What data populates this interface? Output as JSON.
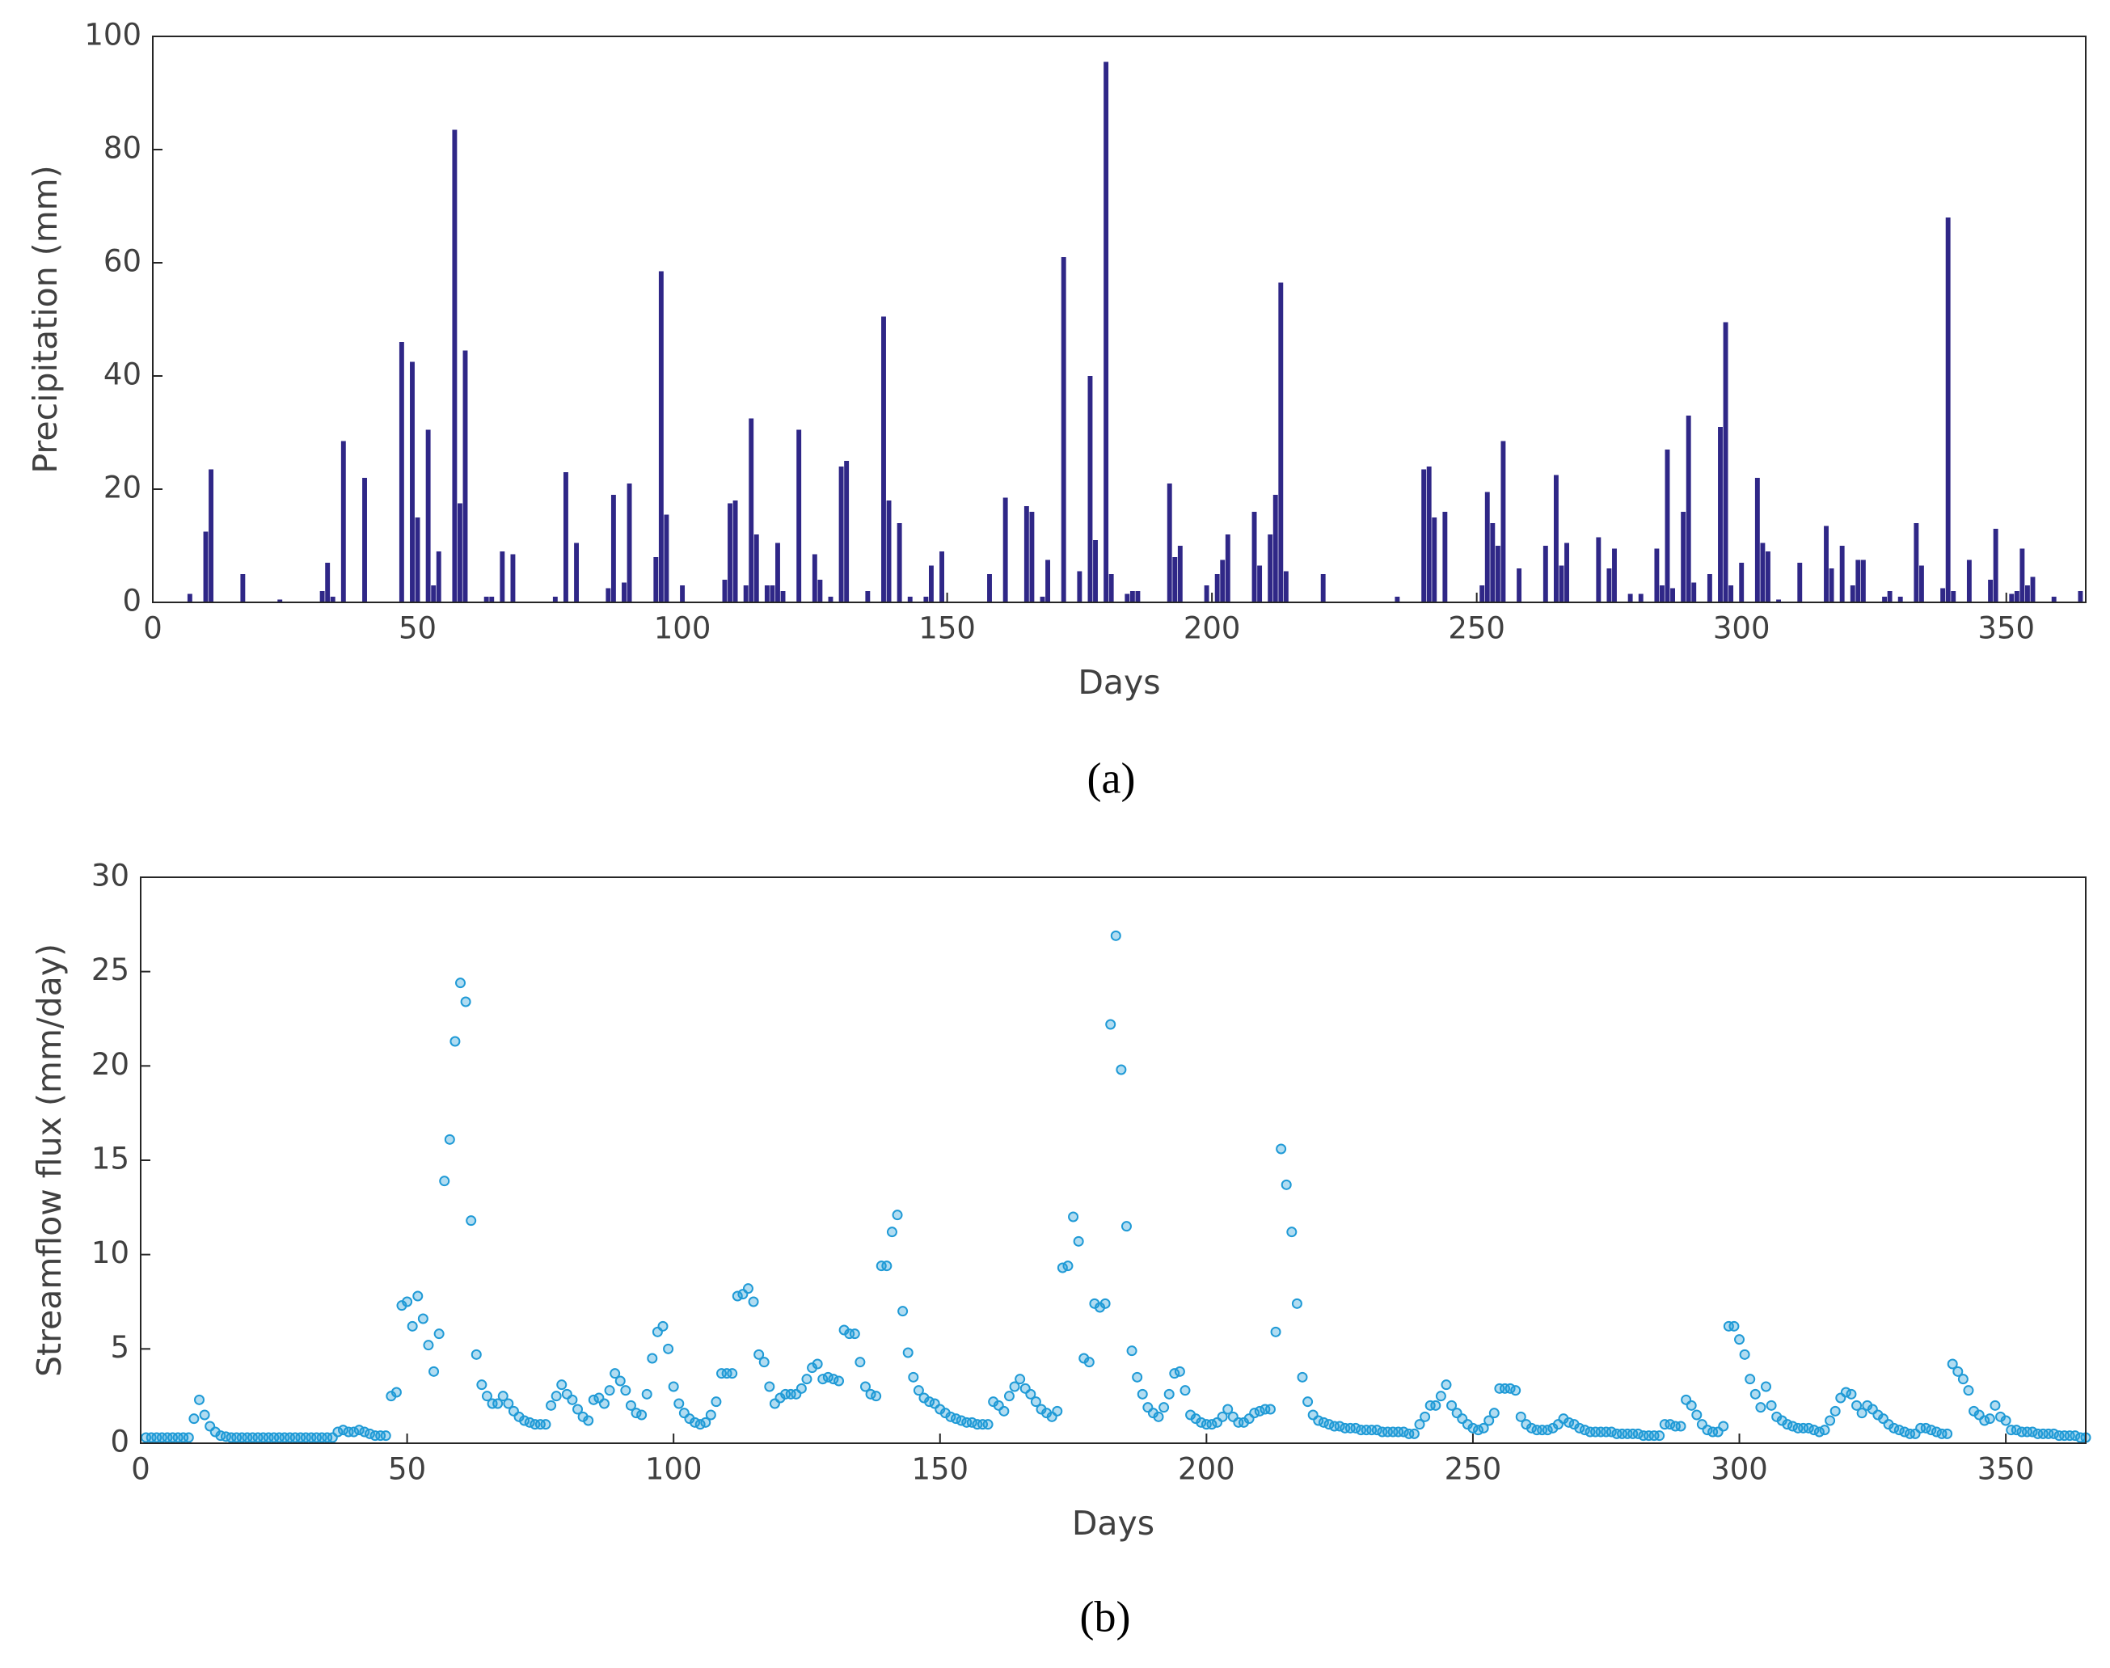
{
  "chart_data": [
    {
      "type": "bar",
      "panel_label": "(a)",
      "xlabel": "Days",
      "ylabel": "Precipitation (mm)",
      "color": "#2f2787",
      "xlim": [
        0,
        365
      ],
      "xticks": [
        0,
        50,
        100,
        150,
        200,
        250,
        300,
        350
      ],
      "ylim": [
        0,
        100
      ],
      "yticks": [
        0,
        20,
        40,
        60,
        80,
        100
      ],
      "x": [
        7,
        10,
        11,
        17,
        24,
        32,
        33,
        34,
        36,
        40,
        47,
        49,
        50,
        52,
        53,
        54,
        57,
        58,
        59,
        63,
        64,
        66,
        68,
        76,
        78,
        80,
        86,
        87,
        89,
        90,
        95,
        96,
        97,
        100,
        108,
        109,
        110,
        112,
        113,
        114,
        116,
        117,
        118,
        119,
        122,
        125,
        126,
        128,
        130,
        131,
        135,
        138,
        139,
        141,
        143,
        146,
        147,
        149,
        158,
        161,
        165,
        166,
        168,
        169,
        172,
        175,
        177,
        178,
        180,
        181,
        184,
        185,
        186,
        192,
        193,
        194,
        199,
        201,
        202,
        203,
        208,
        209,
        211,
        212,
        213,
        214,
        221,
        235,
        240,
        241,
        242,
        244,
        251,
        252,
        253,
        254,
        255,
        258,
        263,
        265,
        266,
        267,
        273,
        275,
        276,
        279,
        281,
        284,
        285,
        286,
        287,
        289,
        290,
        291,
        294,
        296,
        297,
        298,
        300,
        303,
        304,
        305,
        307,
        311,
        316,
        317,
        319,
        321,
        322,
        323,
        327,
        328,
        330,
        333,
        334,
        338,
        339,
        340,
        343,
        347,
        348,
        351,
        352,
        353,
        354,
        355,
        359,
        364
      ],
      "values": [
        1.5,
        12.5,
        23.5,
        5,
        0.5,
        2,
        7,
        1,
        28.5,
        22,
        46,
        42.5,
        15,
        30.5,
        3,
        9,
        83.5,
        17.5,
        44.5,
        1,
        1,
        9,
        8.5,
        1,
        23,
        10.5,
        2.5,
        19,
        3.5,
        21,
        8,
        58.5,
        15.5,
        3,
        4,
        17.5,
        18,
        3,
        32.5,
        12,
        3,
        3,
        10.5,
        2,
        30.5,
        8.5,
        4,
        1,
        24,
        25,
        2,
        50.5,
        18,
        14,
        1,
        1,
        6.5,
        9,
        5,
        18.5,
        17,
        16,
        1,
        7.5,
        61,
        5.5,
        40,
        11,
        95.5,
        5,
        1.5,
        2,
        2,
        21,
        8,
        10,
        3,
        5,
        7.5,
        12,
        16,
        6.5,
        12,
        19,
        56.5,
        5.5,
        5,
        1,
        23.5,
        24,
        15,
        16,
        3,
        19.5,
        14,
        10,
        28.5,
        6,
        10,
        22.5,
        6.5,
        10.5,
        11.5,
        6,
        9.5,
        1.5,
        1.5,
        9.5,
        3,
        27,
        2.5,
        16,
        33,
        3.5,
        5,
        31,
        49.5,
        3,
        7,
        22,
        10.5,
        9,
        0.5,
        7,
        13.5,
        6,
        10,
        3,
        7.5,
        7.5,
        1,
        2,
        1,
        14,
        6.5,
        2.5,
        68,
        2,
        7.5,
        4,
        13,
        1.5,
        2,
        9.5,
        3,
        4.5,
        1,
        2
      ]
    },
    {
      "type": "scatter",
      "panel_label": "(b)",
      "xlabel": "Days",
      "ylabel": "Streamflow flux (mm/day)",
      "color": "#1f9ad6",
      "xlim": [
        0,
        365
      ],
      "xticks": [
        0,
        50,
        100,
        150,
        200,
        250,
        300,
        350
      ],
      "ylim": [
        0,
        30
      ],
      "yticks": [
        0,
        5,
        10,
        15,
        20,
        25,
        30
      ],
      "x": [
        1,
        2,
        3,
        4,
        5,
        6,
        7,
        8,
        9,
        10,
        11,
        12,
        13,
        14,
        15,
        16,
        17,
        18,
        19,
        20,
        21,
        22,
        23,
        24,
        25,
        26,
        27,
        28,
        29,
        30,
        31,
        32,
        33,
        34,
        35,
        36,
        37,
        38,
        39,
        40,
        41,
        42,
        43,
        44,
        45,
        46,
        47,
        48,
        49,
        50,
        51,
        52,
        53,
        54,
        55,
        56,
        57,
        58,
        59,
        60,
        61,
        62,
        63,
        64,
        65,
        66,
        67,
        68,
        69,
        70,
        71,
        72,
        73,
        74,
        75,
        76,
        77,
        78,
        79,
        80,
        81,
        82,
        83,
        84,
        85,
        86,
        87,
        88,
        89,
        90,
        91,
        92,
        93,
        94,
        95,
        96,
        97,
        98,
        99,
        100,
        101,
        102,
        103,
        104,
        105,
        106,
        107,
        108,
        109,
        110,
        111,
        112,
        113,
        114,
        115,
        116,
        117,
        118,
        119,
        120,
        121,
        122,
        123,
        124,
        125,
        126,
        127,
        128,
        129,
        130,
        131,
        132,
        133,
        134,
        135,
        136,
        137,
        138,
        139,
        140,
        141,
        142,
        143,
        144,
        145,
        146,
        147,
        148,
        149,
        150,
        151,
        152,
        153,
        154,
        155,
        156,
        157,
        158,
        159,
        160,
        161,
        162,
        163,
        164,
        165,
        166,
        167,
        168,
        169,
        170,
        171,
        172,
        173,
        174,
        175,
        176,
        177,
        178,
        179,
        180,
        181,
        182,
        183,
        184,
        185,
        186,
        187,
        188,
        189,
        190,
        191,
        192,
        193,
        194,
        195,
        196,
        197,
        198,
        199,
        200,
        201,
        202,
        203,
        204,
        205,
        206,
        207,
        208,
        209,
        210,
        211,
        212,
        213,
        214,
        215,
        216,
        217,
        218,
        219,
        220,
        221,
        222,
        223,
        224,
        225,
        226,
        227,
        228,
        229,
        230,
        231,
        232,
        233,
        234,
        235,
        236,
        237,
        238,
        239,
        240,
        241,
        242,
        243,
        244,
        245,
        246,
        247,
        248,
        249,
        250,
        251,
        252,
        253,
        254,
        255,
        256,
        257,
        258,
        259,
        260,
        261,
        262,
        263,
        264,
        265,
        266,
        267,
        268,
        269,
        270,
        271,
        272,
        273,
        274,
        275,
        276,
        277,
        278,
        279,
        280,
        281,
        282,
        283,
        284,
        285,
        286,
        287,
        288,
        289,
        290,
        291,
        292,
        293,
        294,
        295,
        296,
        297,
        298,
        299,
        300,
        301,
        302,
        303,
        304,
        305,
        306,
        307,
        308,
        309,
        310,
        311,
        312,
        313,
        314,
        315,
        316,
        317,
        318,
        319,
        320,
        321,
        322,
        323,
        324,
        325,
        326,
        327,
        328,
        329,
        330,
        331,
        332,
        333,
        334,
        335,
        336,
        337,
        338,
        339,
        340,
        341,
        342,
        343,
        344,
        345,
        346,
        347,
        348,
        349,
        350,
        351,
        352,
        353,
        354,
        355,
        356,
        357,
        358,
        359,
        360,
        361,
        362,
        363,
        364,
        365
      ],
      "values": [
        0.3,
        0.3,
        0.3,
        0.3,
        0.3,
        0.3,
        0.3,
        0.3,
        0.3,
        1.3,
        2.3,
        1.5,
        0.9,
        0.6,
        0.4,
        0.35,
        0.3,
        0.3,
        0.3,
        0.3,
        0.3,
        0.3,
        0.3,
        0.3,
        0.3,
        0.3,
        0.3,
        0.3,
        0.3,
        0.3,
        0.3,
        0.3,
        0.3,
        0.3,
        0.3,
        0.3,
        0.6,
        0.7,
        0.6,
        0.6,
        0.7,
        0.6,
        0.5,
        0.4,
        0.4,
        0.4,
        2.5,
        2.7,
        7.3,
        7.5,
        6.2,
        7.8,
        6.6,
        5.2,
        3.8,
        5.8,
        13.9,
        16.1,
        21.3,
        24.4,
        23.4,
        11.8,
        4.7,
        3.1,
        2.5,
        2.1,
        2.1,
        2.5,
        2.1,
        1.7,
        1.4,
        1.2,
        1.1,
        1.0,
        1.0,
        1.0,
        2.0,
        2.5,
        3.1,
        2.6,
        2.3,
        1.8,
        1.4,
        1.2,
        2.3,
        2.4,
        2.1,
        2.8,
        3.7,
        3.3,
        2.8,
        2.0,
        1.6,
        1.5,
        2.6,
        4.5,
        5.9,
        6.2,
        5.0,
        3.0,
        2.1,
        1.6,
        1.3,
        1.1,
        1.0,
        1.1,
        1.5,
        2.2,
        3.7,
        3.7,
        3.7,
        7.8,
        7.9,
        8.2,
        7.5,
        4.7,
        4.3,
        3.0,
        2.1,
        2.4,
        2.6,
        2.6,
        2.6,
        2.9,
        3.4,
        4.0,
        4.2,
        3.4,
        3.5,
        3.4,
        3.3,
        6.0,
        5.8,
        5.8,
        4.3,
        3.0,
        2.6,
        2.5,
        9.4,
        9.4,
        11.2,
        12.1,
        7.0,
        4.8,
        3.5,
        2.8,
        2.4,
        2.2,
        2.1,
        1.8,
        1.6,
        1.4,
        1.3,
        1.2,
        1.1,
        1.1,
        1.0,
        1.0,
        1.0,
        2.2,
        2.0,
        1.7,
        2.5,
        3.0,
        3.4,
        2.9,
        2.6,
        2.2,
        1.8,
        1.6,
        1.4,
        1.7,
        9.3,
        9.4,
        12.0,
        10.7,
        4.5,
        4.3,
        7.4,
        7.2,
        7.4,
        22.2,
        26.9,
        19.8,
        11.5,
        4.9,
        3.5,
        2.6,
        1.9,
        1.6,
        1.4,
        1.9,
        2.6,
        3.7,
        3.8,
        2.8,
        1.5,
        1.3,
        1.1,
        1.0,
        1.0,
        1.1,
        1.4,
        1.8,
        1.4,
        1.1,
        1.1,
        1.3,
        1.6,
        1.7,
        1.8,
        1.8,
        5.9,
        15.6,
        13.7,
        11.2,
        7.4,
        3.5,
        2.2,
        1.5,
        1.2,
        1.1,
        1.0,
        0.9,
        0.9,
        0.8,
        0.8,
        0.8,
        0.7,
        0.7,
        0.7,
        0.7,
        0.6,
        0.6,
        0.6,
        0.6,
        0.6,
        0.5,
        0.5,
        1.0,
        1.4,
        2.0,
        2.0,
        2.5,
        3.1,
        2.0,
        1.6,
        1.3,
        1.0,
        0.8,
        0.7,
        0.8,
        1.2,
        1.6,
        2.9,
        2.9,
        2.9,
        2.8,
        1.4,
        1.0,
        0.8,
        0.7,
        0.7,
        0.7,
        0.8,
        1.0,
        1.3,
        1.1,
        1.0,
        0.8,
        0.7,
        0.6,
        0.6,
        0.6,
        0.6,
        0.6,
        0.5,
        0.5,
        0.5,
        0.5,
        0.5,
        0.4,
        0.4,
        0.4,
        0.4,
        1.0,
        1.0,
        0.9,
        0.9,
        2.3,
        2.0,
        1.5,
        1.0,
        0.7,
        0.6,
        0.6,
        0.9,
        6.2,
        6.2,
        5.5,
        4.7,
        3.4,
        2.6,
        1.9,
        3.0,
        2.0,
        1.4,
        1.2,
        1.0,
        0.9,
        0.8,
        0.8,
        0.8,
        0.7,
        0.6,
        0.7,
        1.2,
        1.7,
        2.4,
        2.7,
        2.6,
        2.0,
        1.6,
        2.0,
        1.8,
        1.5,
        1.3,
        1.0,
        0.8,
        0.7,
        0.6,
        0.5,
        0.5,
        0.8,
        0.8,
        0.7,
        0.6,
        0.5,
        0.5,
        4.2,
        3.8,
        3.4,
        2.8,
        1.7,
        1.5,
        1.2,
        1.3,
        2.0,
        1.4,
        1.2,
        0.7,
        0.7,
        0.6,
        0.6,
        0.6,
        0.5,
        0.5,
        0.5,
        0.5,
        0.4,
        0.4,
        0.4,
        0.4,
        0.3,
        0.3
      ]
    }
  ]
}
